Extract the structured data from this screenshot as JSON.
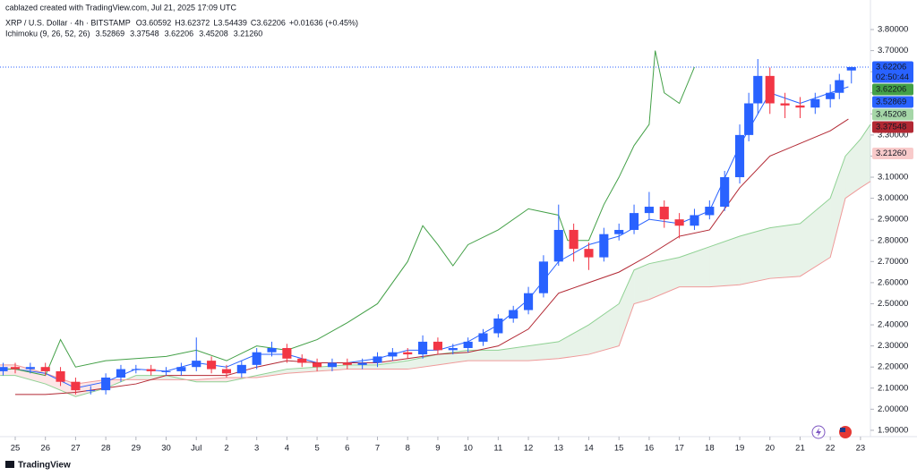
{
  "header": {
    "credit": "cablazed created with TradingView.com, Jul 21, 2025 17:09 UTC"
  },
  "footer": {
    "brand": "TradingView"
  },
  "chart_data": {
    "type": "candlestick",
    "symbol": "XRP / U.S. Dollar · 4h · BITSTAMP",
    "ohlc_legend": [
      {
        "label": "O",
        "value": "3.60592"
      },
      {
        "label": "H",
        "value": "3.62372"
      },
      {
        "label": "L",
        "value": "3.54439"
      },
      {
        "label": "C",
        "value": "3.62206"
      }
    ],
    "change": "+0.01636 (+0.45%)",
    "legend_value_color": "#2962ff",
    "indicator": "Ichimoku (9, 26, 52, 26)",
    "indicator_legend": [
      {
        "text": "3.52869",
        "color": "#2962ff"
      },
      {
        "text": "3.37548",
        "color": "#b22833"
      },
      {
        "text": "3.62206",
        "color": "#43a047"
      },
      {
        "text": "3.45208",
        "color": "#7cc47f"
      },
      {
        "text": "3.21260",
        "color": "#ef9a9a"
      }
    ],
    "up_color": "#2962ff",
    "down_color": "#f23645",
    "x": [
      -0.4,
      0,
      0.5,
      1,
      1.5,
      2,
      2.5,
      3,
      3.5,
      4,
      4.5,
      5,
      5.5,
      6,
      6.5,
      7,
      7.5,
      8,
      8.5,
      9,
      9.5,
      10,
      10.5,
      11,
      11.5,
      12,
      12.5,
      13,
      13.5,
      14,
      14.5,
      15,
      15.5,
      16,
      16.5,
      17,
      17.5,
      18,
      18.5,
      19,
      19.5,
      20,
      20.5,
      21,
      21.5,
      22,
      22.5,
      23,
      23.5,
      24,
      24.3,
      24.6,
      25,
      25.5,
      26,
      26.5,
      27,
      27.3,
      27.7
    ],
    "open": [
      2.18,
      2.2,
      2.19,
      2.2,
      2.18,
      2.13,
      2.09,
      2.09,
      2.15,
      2.19,
      2.19,
      2.18,
      2.18,
      2.2,
      2.23,
      2.19,
      2.17,
      2.21,
      2.27,
      2.29,
      2.24,
      2.22,
      2.2,
      2.22,
      2.21,
      2.22,
      2.25,
      2.27,
      2.26,
      2.32,
      2.28,
      2.29,
      2.32,
      2.36,
      2.43,
      2.47,
      2.55,
      2.7,
      2.85,
      2.76,
      2.72,
      2.83,
      2.85,
      2.93,
      2.96,
      2.9,
      2.87,
      2.92,
      2.96,
      3.1,
      3.3,
      3.45,
      3.58,
      3.45,
      3.44,
      3.43,
      3.47,
      3.5,
      3.60592
    ],
    "high": [
      2.22,
      2.22,
      2.22,
      2.22,
      2.2,
      2.15,
      2.11,
      2.17,
      2.21,
      2.21,
      2.21,
      2.2,
      2.22,
      2.34,
      2.25,
      2.21,
      2.23,
      2.29,
      2.32,
      2.31,
      2.26,
      2.24,
      2.24,
      2.24,
      2.24,
      2.27,
      2.29,
      2.29,
      2.35,
      2.34,
      2.31,
      2.34,
      2.38,
      2.45,
      2.49,
      2.58,
      2.73,
      2.97,
      2.88,
      2.79,
      2.86,
      2.88,
      2.97,
      3.03,
      2.99,
      2.93,
      2.95,
      2.99,
      3.13,
      3.35,
      3.5,
      3.66,
      3.62,
      3.5,
      3.48,
      3.5,
      3.54,
      3.59,
      3.62372
    ],
    "low": [
      2.16,
      2.17,
      2.17,
      2.16,
      2.11,
      2.07,
      2.07,
      2.07,
      2.13,
      2.17,
      2.16,
      2.16,
      2.16,
      2.18,
      2.17,
      2.15,
      2.15,
      2.19,
      2.25,
      2.22,
      2.2,
      2.18,
      2.18,
      2.19,
      2.19,
      2.2,
      2.23,
      2.24,
      2.24,
      2.26,
      2.26,
      2.27,
      2.3,
      2.34,
      2.41,
      2.45,
      2.53,
      2.68,
      2.7,
      2.66,
      2.7,
      2.8,
      2.83,
      2.9,
      2.86,
      2.81,
      2.85,
      2.9,
      2.94,
      3.07,
      3.27,
      3.4,
      3.4,
      3.38,
      3.38,
      3.4,
      3.43,
      3.47,
      3.54439
    ],
    "close": [
      2.2,
      2.19,
      2.2,
      2.18,
      2.13,
      2.09,
      2.09,
      2.15,
      2.19,
      2.19,
      2.18,
      2.18,
      2.2,
      2.23,
      2.19,
      2.17,
      2.21,
      2.27,
      2.29,
      2.24,
      2.22,
      2.2,
      2.22,
      2.21,
      2.22,
      2.25,
      2.27,
      2.26,
      2.32,
      2.28,
      2.29,
      2.32,
      2.36,
      2.43,
      2.47,
      2.55,
      2.7,
      2.85,
      2.76,
      2.72,
      2.83,
      2.85,
      2.93,
      2.96,
      2.9,
      2.87,
      2.92,
      2.96,
      3.1,
      3.3,
      3.45,
      3.58,
      3.45,
      3.44,
      3.43,
      3.47,
      3.5,
      3.56,
      3.62206
    ],
    "lines": [
      {
        "color": "#2962ff",
        "x": [
          0,
          1,
          2,
          3,
          4,
          5,
          6,
          7,
          8,
          9,
          10,
          11,
          12,
          13,
          14,
          15,
          16,
          17,
          18,
          19,
          20,
          21,
          22,
          23,
          24,
          25,
          26,
          27,
          27.6
        ],
        "values": [
          2.19,
          2.17,
          2.1,
          2.13,
          2.19,
          2.18,
          2.22,
          2.2,
          2.26,
          2.26,
          2.22,
          2.22,
          2.24,
          2.28,
          2.28,
          2.32,
          2.4,
          2.52,
          2.7,
          2.78,
          2.82,
          2.9,
          2.88,
          2.94,
          3.25,
          3.5,
          3.45,
          3.5,
          3.52869
        ]
      },
      {
        "color": "#b22833",
        "x": [
          0,
          1,
          2,
          3,
          4,
          5,
          6,
          7,
          8,
          9,
          10,
          11,
          12,
          13,
          14,
          15,
          16,
          17,
          18,
          19,
          20,
          21,
          22,
          23,
          24,
          25,
          26,
          27,
          27.6
        ],
        "values": [
          2.07,
          2.07,
          2.08,
          2.1,
          2.12,
          2.16,
          2.16,
          2.16,
          2.2,
          2.23,
          2.22,
          2.22,
          2.22,
          2.24,
          2.26,
          2.27,
          2.3,
          2.38,
          2.55,
          2.6,
          2.65,
          2.73,
          2.82,
          2.85,
          3.05,
          3.2,
          3.26,
          3.32,
          3.37548
        ]
      },
      {
        "color": "#43a047",
        "x": [
          -0.5,
          0,
          1,
          1.5,
          2,
          3,
          4,
          5,
          6,
          7,
          8,
          9,
          10,
          11,
          12,
          13,
          13.5,
          14,
          14.5,
          15,
          16,
          17,
          18,
          18.3,
          19,
          19.5,
          20,
          20.5,
          21,
          21.2,
          21.5,
          22,
          22.5
        ],
        "values": [
          2.19,
          2.19,
          2.16,
          2.33,
          2.2,
          2.23,
          2.24,
          2.25,
          2.28,
          2.23,
          2.3,
          2.28,
          2.33,
          2.41,
          2.5,
          2.7,
          2.87,
          2.78,
          2.68,
          2.78,
          2.85,
          2.95,
          2.92,
          2.8,
          2.8,
          2.97,
          3.1,
          3.25,
          3.35,
          3.7,
          3.5,
          3.45,
          3.62206
        ]
      }
    ],
    "cloud": {
      "x": [
        -0.5,
        0,
        1,
        2,
        3,
        4,
        5,
        6,
        7,
        8,
        9,
        10,
        11,
        12,
        13,
        14,
        15,
        16,
        17,
        18,
        19,
        20,
        20.5,
        21,
        22,
        23,
        24,
        25,
        26,
        27,
        27.5,
        28,
        28.33
      ],
      "span_a": [
        2.16,
        2.16,
        2.12,
        2.06,
        2.1,
        2.16,
        2.16,
        2.13,
        2.13,
        2.16,
        2.19,
        2.2,
        2.21,
        2.21,
        2.23,
        2.26,
        2.28,
        2.28,
        2.3,
        2.32,
        2.4,
        2.5,
        2.66,
        2.69,
        2.72,
        2.77,
        2.82,
        2.86,
        2.88,
        3.0,
        3.2,
        3.28,
        3.35
      ],
      "span_b": [
        2.21,
        2.21,
        2.17,
        2.12,
        2.14,
        2.14,
        2.14,
        2.14,
        2.15,
        2.15,
        2.17,
        2.18,
        2.19,
        2.19,
        2.19,
        2.21,
        2.23,
        2.23,
        2.23,
        2.24,
        2.26,
        2.3,
        2.5,
        2.52,
        2.58,
        2.58,
        2.59,
        2.62,
        2.63,
        2.72,
        3.0,
        3.05,
        3.08
      ],
      "span_a_color": "#8fd193",
      "span_b_color": "#ef9a9a",
      "up_fill": "rgba(67,160,71,0.12)",
      "down_fill": "rgba(242,54,69,0.12)"
    },
    "xlim": [
      -0.504,
      28.33
    ],
    "xticks": [
      {
        "value": 0,
        "label": "25"
      },
      {
        "value": 1,
        "label": "26"
      },
      {
        "value": 2,
        "label": "27"
      },
      {
        "value": 3,
        "label": "28"
      },
      {
        "value": 4,
        "label": "29"
      },
      {
        "value": 5,
        "label": "30"
      },
      {
        "value": 6,
        "label": "Jul"
      },
      {
        "value": 7,
        "label": "2"
      },
      {
        "value": 8,
        "label": "3"
      },
      {
        "value": 9,
        "label": "4"
      },
      {
        "value": 10,
        "label": "5"
      },
      {
        "value": 11,
        "label": "6"
      },
      {
        "value": 12,
        "label": "7"
      },
      {
        "value": 13,
        "label": "8"
      },
      {
        "value": 14,
        "label": "9"
      },
      {
        "value": 15,
        "label": "10"
      },
      {
        "value": 16,
        "label": "11"
      },
      {
        "value": 17,
        "label": "12"
      },
      {
        "value": 18,
        "label": "13"
      },
      {
        "value": 19,
        "label": "14"
      },
      {
        "value": 20,
        "label": "15"
      },
      {
        "value": 21,
        "label": "16"
      },
      {
        "value": 22,
        "label": "17"
      },
      {
        "value": 23,
        "label": "18"
      },
      {
        "value": 24,
        "label": "19"
      },
      {
        "value": 25,
        "label": "20"
      },
      {
        "value": 26,
        "label": "21"
      },
      {
        "value": 27,
        "label": "22"
      },
      {
        "value": 28,
        "label": "23"
      }
    ],
    "ylim": [
      1.87,
      3.94
    ],
    "yticks": [
      {
        "value": 1.9,
        "label": "1.90000"
      },
      {
        "value": 2.0,
        "label": "2.00000"
      },
      {
        "value": 2.1,
        "label": "2.10000"
      },
      {
        "value": 2.2,
        "label": "2.20000"
      },
      {
        "value": 2.3,
        "label": "2.30000"
      },
      {
        "value": 2.4,
        "label": "2.40000"
      },
      {
        "value": 2.5,
        "label": "2.50000"
      },
      {
        "value": 2.6,
        "label": "2.60000"
      },
      {
        "value": 2.7,
        "label": "2.70000"
      },
      {
        "value": 2.8,
        "label": "2.80000"
      },
      {
        "value": 2.9,
        "label": "2.90000"
      },
      {
        "value": 3.0,
        "label": "3.00000"
      },
      {
        "value": 3.1,
        "label": "3.10000"
      },
      {
        "value": 3.2,
        "label": "3.20000"
      },
      {
        "value": 3.3,
        "label": "3.30000"
      },
      {
        "value": 3.4,
        "label": "3.40000"
      },
      {
        "value": 3.5,
        "label": "3.50000"
      },
      {
        "value": 3.6,
        "label": "3.60000"
      },
      {
        "value": 3.7,
        "label": "3.70000"
      },
      {
        "value": 3.8,
        "label": "3.80000"
      }
    ],
    "price_tags": [
      {
        "value": 3.62206,
        "color": "#2962ff",
        "sub": "02:50:44"
      },
      {
        "value": 3.62206,
        "color": "#43a047"
      },
      {
        "value": 3.52869,
        "color": "#2962ff"
      },
      {
        "value": 3.45208,
        "color": "#a5d6a7",
        "text_color": "#131722"
      },
      {
        "value": 3.37548,
        "color": "#b22833"
      },
      {
        "value": 3.2126,
        "label": "3.21260",
        "color": "#f8caca",
        "text_color": "#131722"
      }
    ]
  }
}
